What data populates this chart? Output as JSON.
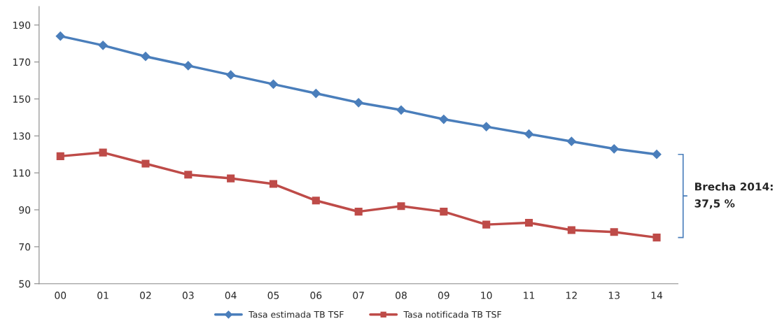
{
  "chart_data": {
    "type": "line",
    "categories": [
      "00",
      "01",
      "02",
      "03",
      "04",
      "05",
      "06",
      "07",
      "08",
      "09",
      "10",
      "11",
      "12",
      "13",
      "14"
    ],
    "series": [
      {
        "name": "Tasa estimada TB TSF",
        "color": "#4a7ebb",
        "marker": "diamond",
        "values": [
          184,
          179,
          173,
          168,
          163,
          158,
          153,
          148,
          144,
          139,
          135,
          131,
          127,
          123,
          120
        ]
      },
      {
        "name": "Tasa notificada TB TSF",
        "color": "#be4b48",
        "marker": "square",
        "values": [
          119,
          121,
          115,
          109,
          107,
          104,
          95,
          89,
          92,
          89,
          82,
          83,
          79,
          78,
          75
        ]
      }
    ],
    "ylim": [
      50,
      200
    ],
    "yticks": [
      50,
      70,
      90,
      110,
      130,
      150,
      170,
      190
    ],
    "grid": false,
    "legend": "bottom",
    "line_style": "solid",
    "annotations": [
      "Brecha 2014:\n37,5 %"
    ]
  }
}
